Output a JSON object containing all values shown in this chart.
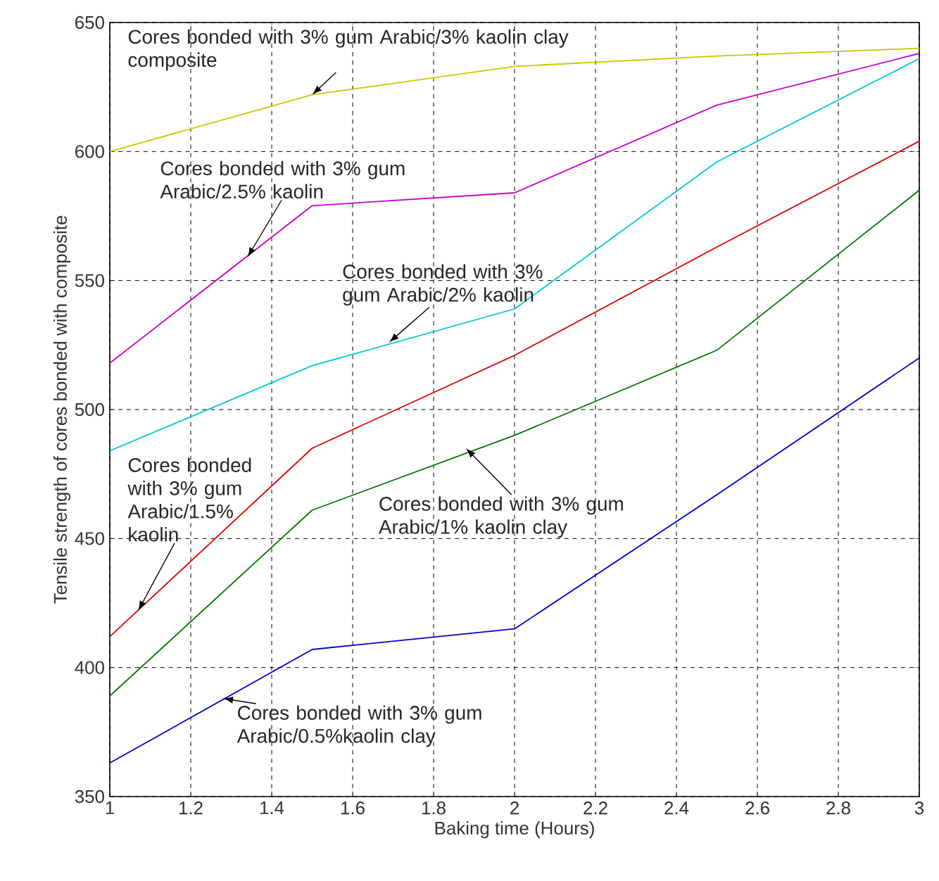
{
  "chart_data": {
    "type": "line",
    "xlabel": "Baking time (Hours)",
    "ylabel": "Tensile strength of cores bonded with composite",
    "x": [
      1,
      1.5,
      2,
      2.5,
      3
    ],
    "series": [
      {
        "color": "#c8c800",
        "values": [
          600,
          622,
          633,
          637,
          640
        ]
      },
      {
        "color": "#cc00cc",
        "values": [
          518,
          579,
          584,
          618,
          638
        ]
      },
      {
        "color": "#00c8c8",
        "values": [
          484,
          517,
          539,
          596,
          636
        ]
      },
      {
        "color": "#dd0000",
        "values": [
          412,
          485,
          521,
          563,
          604
        ]
      },
      {
        "color": "#007700",
        "values": [
          389,
          461,
          490,
          523,
          585
        ]
      },
      {
        "color": "#0000cc",
        "values": [
          363,
          407,
          415,
          467,
          520
        ]
      }
    ],
    "annotations": [
      {
        "text": "Cores bonded with 3% gum Arabic/3% kaolin clay composite",
        "x": 1.5,
        "y": 622
      },
      {
        "text": "Cores bonded with 3% gum Arabic/2.5% kaolin",
        "x": 1.34,
        "y": 559
      },
      {
        "text": "Cores bonded with 3% gum Arabic/2% kaolin",
        "x": 1.69,
        "y": 526
      },
      {
        "text": "Cores bonded with 3% gum Arabic/1.5% kaolin",
        "x": 1.07,
        "y": 422
      },
      {
        "text": "Cores bonded with 3% gum Arabic/1% kaolin clay",
        "x": 1.88,
        "y": 485
      },
      {
        "text": "Cores bonded  with 3% gum Arabic/0.5%kaolin clay",
        "x": 1.28,
        "y": 388
      }
    ],
    "xlim": [
      1,
      3
    ],
    "ylim": [
      350,
      650
    ],
    "xticks": [
      1,
      1.2,
      1.4,
      1.6,
      1.8,
      2,
      2.2,
      2.4,
      2.6,
      2.8,
      3
    ],
    "yticks": [
      350,
      400,
      450,
      500,
      550,
      600,
      650
    ],
    "grid": true,
    "marker": "none",
    "line_style": "solid"
  }
}
